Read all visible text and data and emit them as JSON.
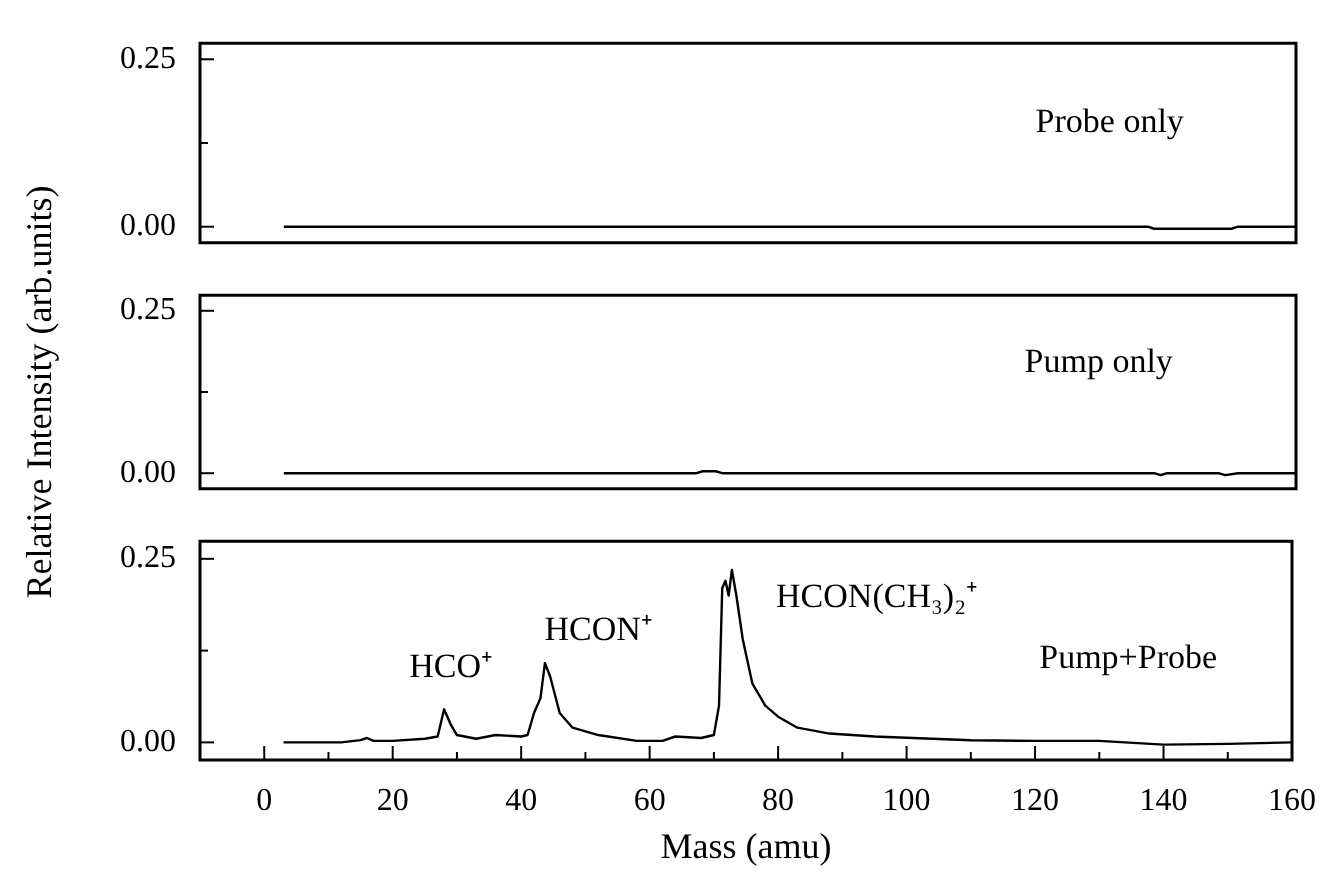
{
  "chart_data": [
    {
      "type": "line",
      "xlim": [
        -10,
        160
      ],
      "ylim": [
        -0.024,
        0.274
      ],
      "tick_labels": "y",
      "yticks": [
        {
          "value": 0,
          "label": "0.00"
        },
        {
          "value": 0.125,
          "label": null
        },
        {
          "value": 0.25,
          "label": "0.25"
        }
      ],
      "series": [
        {
          "color": "#000000",
          "x": [
            3,
            137,
            138,
            150,
            151,
            160
          ],
          "values": [
            0,
            0,
            -0.003,
            -0.003,
            0,
            0
          ]
        }
      ],
      "annotations": [
        "Probe only"
      ]
    },
    {
      "type": "line",
      "xlim": [
        -10,
        160
      ],
      "ylim": [
        -0.024,
        0.274
      ],
      "tick_labels": "y",
      "ylabel": "Relative Intensity (arb.units)",
      "yticks": [
        {
          "value": 0,
          "label": "0.00"
        },
        {
          "value": 0.125,
          "label": null
        },
        {
          "value": 0.25,
          "label": "0.25"
        }
      ],
      "series": [
        {
          "color": "#000000",
          "x": [
            3,
            67,
            68,
            70,
            71,
            138,
            139,
            140,
            148,
            149,
            151,
            160
          ],
          "values": [
            0,
            0,
            0.003,
            0.003,
            0,
            0,
            -0.003,
            0,
            0,
            -0.003,
            0,
            0
          ]
        }
      ],
      "annotations": [
        "Pump only"
      ]
    },
    {
      "type": "line",
      "xlim": [
        -10,
        160
      ],
      "ylim": [
        -0.024,
        0.274
      ],
      "xlabel": "Mass (amu)",
      "xticks": [
        0,
        {
          "value": 10,
          "label": null
        },
        20,
        {
          "value": 30,
          "label": null
        },
        40,
        {
          "value": 50,
          "label": null
        },
        60,
        {
          "value": 70,
          "label": null
        },
        80,
        {
          "value": 90,
          "label": null
        },
        100,
        {
          "value": 110,
          "label": null
        },
        120,
        {
          "value": 130,
          "label": null
        },
        140,
        {
          "value": 150,
          "label": null
        },
        160
      ],
      "yticks": [
        {
          "value": 0,
          "label": "0.00"
        },
        {
          "value": 0.125,
          "label": null
        },
        {
          "value": 0.25,
          "label": "0.25"
        }
      ],
      "series": [
        {
          "color": "#000000",
          "x": [
            3,
            12,
            15,
            16,
            17,
            20,
            25,
            27,
            28,
            29,
            30,
            33,
            36,
            40,
            41,
            42,
            43,
            43.7,
            44.5,
            46,
            48,
            52,
            58,
            62,
            64,
            68,
            70,
            70.8,
            71.3,
            71.8,
            72.3,
            72.8,
            73.5,
            74.5,
            76,
            78,
            80,
            83,
            88,
            95,
            110,
            120,
            130,
            140,
            150,
            160
          ],
          "values": [
            0,
            0,
            0.003,
            0.006,
            0.002,
            0.002,
            0.005,
            0.008,
            0.045,
            0.025,
            0.01,
            0.005,
            0.01,
            0.008,
            0.01,
            0.04,
            0.06,
            0.108,
            0.09,
            0.04,
            0.02,
            0.01,
            0.002,
            0.002,
            0.008,
            0.006,
            0.01,
            0.05,
            0.21,
            0.22,
            0.2,
            0.235,
            0.2,
            0.14,
            0.08,
            0.05,
            0.035,
            0.02,
            0.012,
            0.008,
            0.003,
            0.002,
            0.002,
            -0.003,
            -0.002,
            0
          ]
        }
      ],
      "annotations": [
        "HCO⁺",
        "HCON⁺",
        "HCON(CH₃)₂⁺",
        "Pump+Probe"
      ]
    }
  ]
}
